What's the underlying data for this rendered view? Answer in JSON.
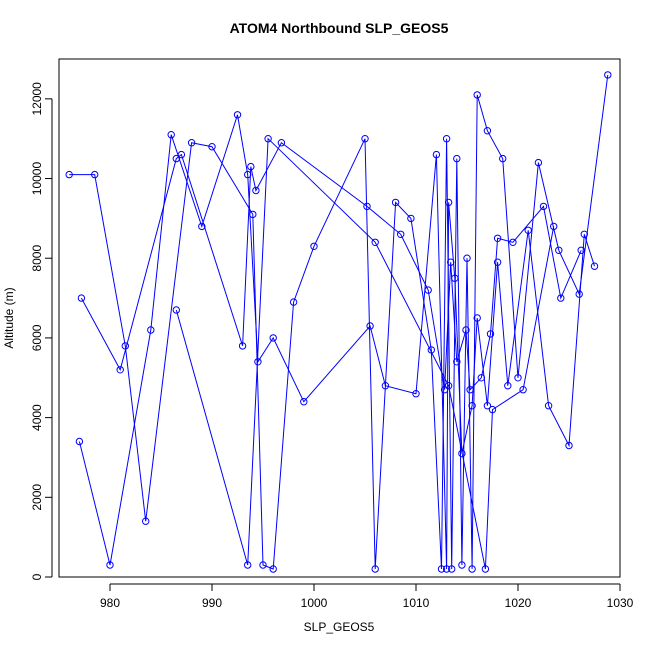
{
  "chart_data": {
    "type": "line",
    "title": "ATOM4 Northbound SLP_GEOS5",
    "xlabel": "SLP_GEOS5",
    "ylabel": "Altitude (m)",
    "xlim": [
      975,
      1030
    ],
    "ylim": [
      0,
      13000
    ],
    "x_ticks": [
      980,
      990,
      1000,
      1010,
      1020,
      1030
    ],
    "y_ticks": [
      0,
      2000,
      4000,
      6000,
      8000,
      10000,
      12000
    ],
    "grid": false,
    "legend": "none",
    "marker": "open-circle",
    "color": "#0000ff",
    "series": [
      {
        "x": [
          976.0,
          978.5,
          981.5,
          983.5,
          988.0,
          990.0,
          994.0,
          995.0,
          996.0,
          998.0,
          1000.0,
          1005.0,
          1006.0,
          1008.0,
          1009.5,
          1011.5,
          1012.5,
          1013.0,
          1013.5,
          1014.0,
          1014.5,
          1015.0,
          1015.5,
          1016.0,
          1017.0,
          1018.5,
          1020.0,
          1022.0,
          1024.0,
          1026.0,
          1028.8
        ],
        "y": [
          10100,
          10100,
          5800,
          1400,
          10900,
          10800,
          9100,
          300,
          200,
          6900,
          8300,
          11000,
          200,
          9400,
          9000,
          5700,
          200,
          11000,
          200,
          10500,
          300,
          8000,
          200,
          12100,
          11200,
          10500,
          5000,
          10400,
          8200,
          7100,
          12600
        ]
      },
      {
        "x": [
          977.0,
          980.0,
          984.0,
          986.0,
          989.0,
          992.5,
          993.5,
          994.5,
          996.0,
          999.0,
          1005.5,
          1007.0,
          1010.0,
          1012.0,
          1013.0,
          1013.2,
          1013.8,
          1014.5,
          1015.5,
          1016.0,
          1017.0,
          1018.0,
          1019.0,
          1021.0,
          1023.0,
          1025.0,
          1026.5,
          1027.5
        ],
        "y": [
          3400,
          300,
          6200,
          11100,
          8800,
          11600,
          10100,
          5400,
          6000,
          4400,
          6300,
          4800,
          4600,
          10600,
          200,
          9400,
          7500,
          3100,
          4300,
          6500,
          4300,
          7900,
          4800,
          8700,
          4300,
          3300,
          8600,
          7800
        ]
      },
      {
        "x": [
          977.2,
          981.0,
          986.5,
          987.0,
          993.0,
          993.8,
          994.3,
          996.8,
          1005.2,
          1008.5,
          1011.2,
          1012.8,
          1013.4,
          1014.0,
          1014.9,
          1015.3,
          1016.4,
          1017.3,
          1018.0,
          1019.5,
          1022.5,
          1024.2,
          1026.2
        ],
        "y": [
          7000,
          5200,
          10500,
          10600,
          5800,
          10300,
          9700,
          10900,
          9300,
          8600,
          7200,
          4700,
          7900,
          5400,
          6200,
          4700,
          5000,
          6100,
          8500,
          8400,
          9300,
          7000,
          8200
        ]
      },
      {
        "x": [
          986.5,
          993.5,
          995.5,
          1006.0,
          1013.2,
          1016.8,
          1017.5,
          1020.5,
          1023.5
        ],
        "y": [
          6700,
          300,
          11000,
          8400,
          4800,
          200,
          4200,
          4700,
          8800
        ]
      }
    ]
  }
}
